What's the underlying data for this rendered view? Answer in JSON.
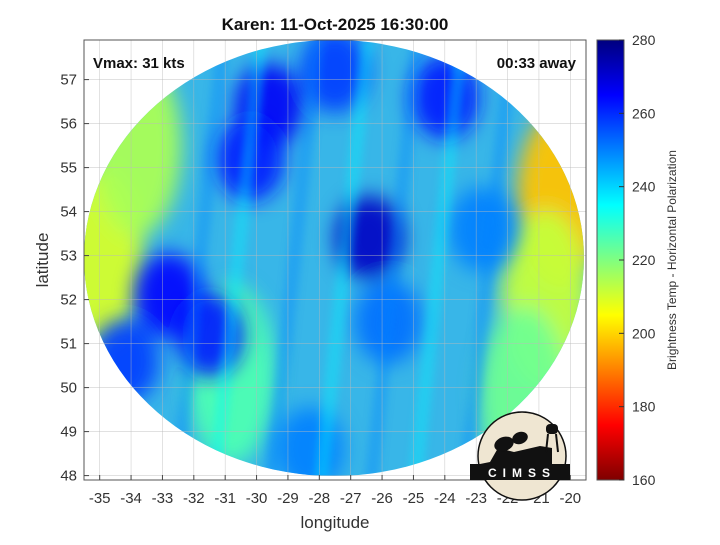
{
  "chart_data": {
    "type": "heatmap",
    "title": "Karen: 11-Oct-2025 16:30:00",
    "xlabel": "longitude",
    "ylabel": "latitude",
    "xlim": [
      -35.5,
      -19.5
    ],
    "ylim": [
      47.9,
      57.9
    ],
    "x_ticks": [
      -35,
      -34,
      -33,
      -32,
      -31,
      -30,
      -29,
      -28,
      -27,
      -26,
      -25,
      -24,
      -23,
      -22,
      -21,
      -20
    ],
    "y_ticks": [
      48,
      49,
      50,
      51,
      52,
      53,
      54,
      55,
      56,
      57
    ],
    "grid": true,
    "annotations": {
      "vmax": "Vmax: 31 kts",
      "away": "00:33 away"
    },
    "colorbar": {
      "label": "Brightness Temp - Horizontal Polarization",
      "range": [
        160,
        280
      ],
      "ticks": [
        160,
        180,
        200,
        220,
        240,
        260,
        280
      ],
      "colormap": "jet"
    },
    "swath_center": [
      -27.4,
      52.9
    ],
    "cold_features": [
      {
        "lon": -26.4,
        "lat": 53.4,
        "value": 272
      },
      {
        "lon": -29.6,
        "lat": 56.4,
        "value": 266
      },
      {
        "lon": -30.2,
        "lat": 55.2,
        "value": 262
      },
      {
        "lon": -32.8,
        "lat": 52.1,
        "value": 265
      },
      {
        "lon": -31.5,
        "lat": 51.2,
        "value": 262
      },
      {
        "lon": -34.2,
        "lat": 50.6,
        "value": 258
      },
      {
        "lon": -24.0,
        "lat": 56.6,
        "value": 262
      },
      {
        "lon": -27.5,
        "lat": 57.2,
        "value": 258
      },
      {
        "lon": -25.8,
        "lat": 51.5,
        "value": 252
      },
      {
        "lon": -28.3,
        "lat": 48.6,
        "value": 250
      },
      {
        "lon": -22.8,
        "lat": 53.6,
        "value": 250
      }
    ],
    "warm_features": [
      {
        "lon": -20.3,
        "lat": 54.3,
        "value": 198
      },
      {
        "lon": -20.8,
        "lat": 52.0,
        "value": 212
      },
      {
        "lon": -35.0,
        "lat": 53.0,
        "value": 210
      },
      {
        "lon": -33.8,
        "lat": 55.5,
        "value": 215
      },
      {
        "lon": -30.8,
        "lat": 50.3,
        "value": 226
      },
      {
        "lon": -21.5,
        "lat": 49.8,
        "value": 222
      }
    ]
  },
  "logo": {
    "text": "CIMSS",
    "colors": {
      "disc": "#efe6d2",
      "ink": "#111111"
    }
  }
}
